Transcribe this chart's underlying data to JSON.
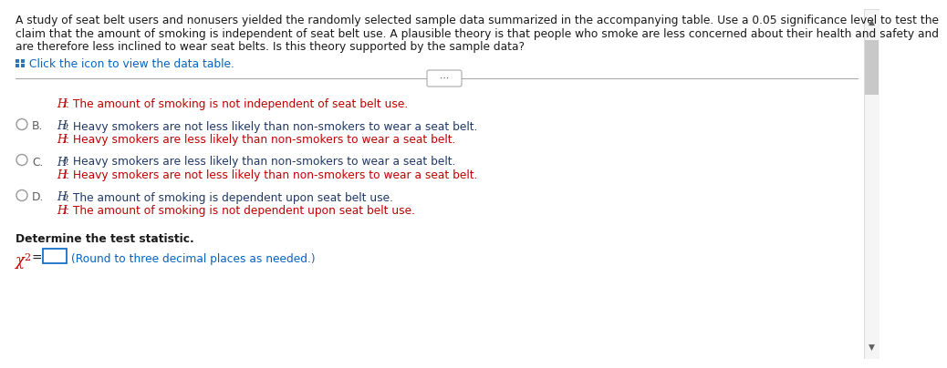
{
  "bg_color": "#ffffff",
  "top_lines": [
    "A study of seat belt users and nonusers yielded the randomly selected sample data summarized in the accompanying table. Use a 0.05 significance level to test the",
    "claim that the amount of smoking is independent of seat belt use. A plausible theory is that people who smoke are less concerned about their health and safety and",
    "are therefore less inclined to wear seat belts. Is this theory supported by the sample data?"
  ],
  "click_text": "Click the icon to view the data table.",
  "h1_text": "The amount of smoking is not independent of seat belt use.",
  "opt_B_H0": "Heavy smokers are not less likely than non-smokers to wear a seat belt.",
  "opt_B_H1": "Heavy smokers are less likely than non-smokers to wear a seat belt.",
  "opt_C_H0": "Heavy smokers are less likely than non-smokers to wear a seat belt.",
  "opt_C_H1": "Heavy smokers are not less likely than non-smokers to wear a seat belt.",
  "opt_D_H0": "The amount of smoking is dependent upon seat belt use.",
  "opt_D_H1": "The amount of smoking is not dependent upon seat belt use.",
  "determine_text": "Determine the test statistic.",
  "round_text": "(Round to three decimal places as needed.)",
  "text_color": "#1a1a1a",
  "dark_blue": "#1f3864",
  "link_blue": "#0563c1",
  "dark_red": "#c00000",
  "gray": "#595959",
  "scrollbar_gray": "#c8c8c8",
  "separator_gray": "#aaaaaa",
  "grid_blue": "#2e75b6"
}
